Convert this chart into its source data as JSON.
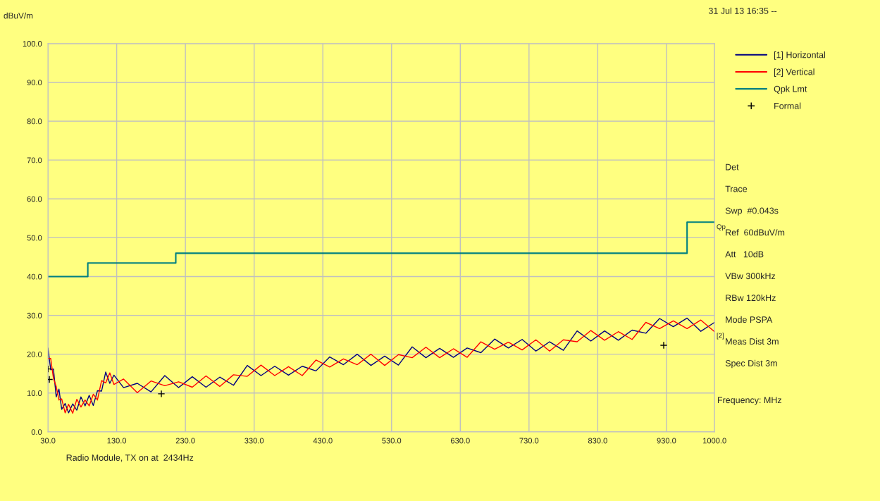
{
  "chart_data": {
    "type": "line",
    "ylabel": "dBuV/m",
    "xlabel": "Frequency: MHz",
    "xlim": [
      30,
      1000
    ],
    "ylim": [
      0,
      100
    ],
    "xticks": [
      {
        "value": 30,
        "label": "30.0"
      },
      {
        "value": 130,
        "label": "130.0"
      },
      {
        "value": 230,
        "label": "230.0"
      },
      {
        "value": 330,
        "label": "330.0"
      },
      {
        "value": 430,
        "label": "430.0"
      },
      {
        "value": 530,
        "label": "530.0"
      },
      {
        "value": 630,
        "label": "630.0"
      },
      {
        "value": 730,
        "label": "730.0"
      },
      {
        "value": 830,
        "label": "830.0"
      },
      {
        "value": 930,
        "label": "930.0"
      },
      {
        "value": 1000,
        "label": "1000.0"
      }
    ],
    "yticks": [
      {
        "value": 0,
        "label": "0.0"
      },
      {
        "value": 10,
        "label": "10.0"
      },
      {
        "value": 20,
        "label": "20.0"
      },
      {
        "value": 30,
        "label": "30.0"
      },
      {
        "value": 40,
        "label": "40.0"
      },
      {
        "value": 50,
        "label": "50.0"
      },
      {
        "value": 60,
        "label": "60.0"
      },
      {
        "value": 70,
        "label": "70.0"
      },
      {
        "value": 80,
        "label": "80.0"
      },
      {
        "value": 90,
        "label": "90.0"
      },
      {
        "value": 100,
        "label": "100.0"
      }
    ],
    "grid": true,
    "legend": "top right",
    "series": [
      {
        "name": "[1] Horizontal",
        "color": "#000080",
        "x": [
          30,
          34,
          38,
          42,
          46,
          50,
          55,
          60,
          66,
          72,
          78,
          84,
          90,
          96,
          102,
          108,
          114,
          120,
          126,
          140,
          160,
          180,
          200,
          220,
          240,
          260,
          280,
          300,
          320,
          340,
          360,
          380,
          400,
          420,
          440,
          460,
          480,
          500,
          520,
          540,
          560,
          580,
          600,
          620,
          640,
          660,
          680,
          700,
          720,
          740,
          760,
          780,
          800,
          820,
          840,
          860,
          880,
          900,
          920,
          940,
          960,
          980,
          1000
        ],
        "values": [
          21.6,
          16.0,
          16.2,
          9.0,
          11.0,
          5.8,
          7.3,
          4.9,
          7.2,
          5.6,
          9.0,
          6.7,
          9.4,
          6.8,
          10.6,
          10.5,
          15.4,
          12.5,
          14.6,
          11.4,
          12.5,
          10.3,
          14.5,
          11.4,
          14.2,
          11.5,
          14.1,
          12.0,
          17.1,
          14.5,
          16.9,
          14.6,
          16.9,
          15.7,
          19.3,
          17.3,
          20.0,
          17.1,
          19.5,
          17.2,
          21.9,
          19.1,
          21.5,
          19.2,
          21.6,
          20.4,
          23.9,
          21.6,
          23.8,
          20.8,
          23.2,
          21.0,
          26.0,
          23.4,
          26.0,
          23.6,
          26.2,
          25.4,
          29.2,
          27.1,
          29.3,
          25.9,
          28.2
        ]
      },
      {
        "name": "[2] Vertical",
        "color": "#ff0000",
        "x": [
          30,
          34,
          38,
          42,
          46,
          50,
          55,
          60,
          66,
          72,
          78,
          84,
          90,
          96,
          102,
          108,
          114,
          120,
          126,
          140,
          160,
          180,
          200,
          220,
          240,
          260,
          280,
          300,
          320,
          340,
          360,
          380,
          400,
          420,
          440,
          460,
          480,
          500,
          520,
          540,
          560,
          580,
          600,
          620,
          640,
          660,
          680,
          700,
          720,
          740,
          760,
          780,
          800,
          820,
          840,
          860,
          880,
          900,
          920,
          940,
          960,
          980,
          1000
        ],
        "values": [
          18.9,
          18.9,
          13.8,
          11.7,
          8.2,
          8.5,
          4.9,
          7.1,
          4.8,
          8.4,
          6.4,
          8.2,
          6.7,
          9.7,
          8.2,
          13.2,
          12.6,
          15.2,
          12.2,
          13.6,
          10.1,
          13.1,
          11.9,
          12.9,
          11.5,
          14.4,
          11.7,
          14.7,
          14.3,
          17.2,
          14.5,
          16.8,
          14.5,
          18.5,
          16.7,
          18.8,
          17.3,
          20.0,
          17.1,
          19.9,
          19.1,
          21.8,
          19.1,
          21.4,
          19.2,
          23.2,
          21.3,
          23.1,
          21.1,
          23.7,
          20.8,
          23.7,
          23.2,
          26.1,
          23.6,
          25.8,
          23.8,
          28.2,
          26.6,
          28.6,
          26.6,
          28.8,
          25.8
        ]
      },
      {
        "name": "Qpk Lmt",
        "color": "#008080",
        "type": "step",
        "x": [
          30,
          88,
          216,
          960,
          1000
        ],
        "values": [
          40,
          43.5,
          46,
          54,
          54
        ]
      },
      {
        "name": "Formal",
        "color": "#000000",
        "type": "scatter",
        "marker": "cross",
        "x": [
          30,
          32,
          195,
          926
        ],
        "values": [
          16.2,
          13.5,
          9.8,
          22.3
        ]
      }
    ],
    "annotations": [
      "31 Jul 13 16:35 --",
      "Det",
      "Trace",
      "Swp  #0.043s",
      "Ref  60dBuV/m",
      "Att   10dB",
      "VBw 300kHz",
      "RBw 120kHz",
      "Mode PSPA",
      "Meas Dist 3m",
      "Spec Dist 3m",
      {
        "text": "Qp",
        "x": 1000,
        "y": 54
      },
      {
        "text": "[2]",
        "x": 1000,
        "y": 26
      },
      "Radio Module, TX on at  2434Hz"
    ]
  }
}
